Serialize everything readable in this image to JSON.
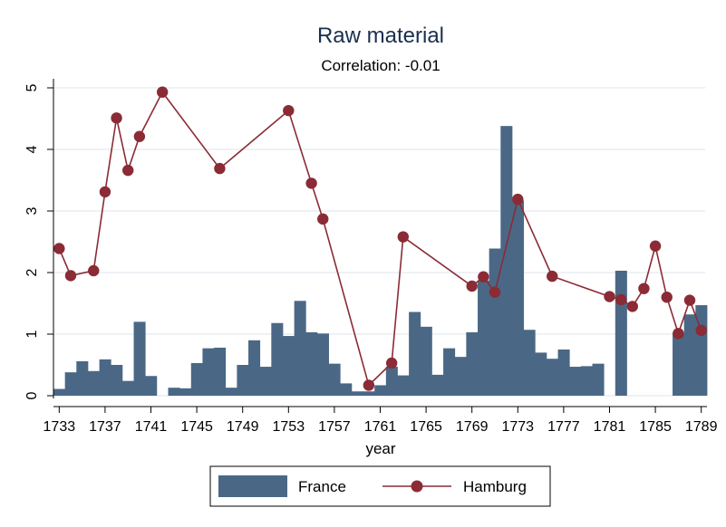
{
  "chart_data": {
    "type": "bar",
    "title": "Raw material",
    "subtitle": "Correlation: -0.01",
    "xlabel": "year",
    "ylabel": "",
    "xlim": [
      1732.5,
      1789.5
    ],
    "ylim": [
      0,
      5
    ],
    "x_ticks": [
      1733,
      1737,
      1741,
      1745,
      1749,
      1753,
      1757,
      1761,
      1765,
      1769,
      1773,
      1777,
      1781,
      1785,
      1789
    ],
    "y_ticks": [
      0,
      1,
      2,
      3,
      4,
      5
    ],
    "grid": true,
    "legend_position": "bottom",
    "colors": {
      "bar": "#4a6886",
      "line": "#8b2b35",
      "marker": "#8b2b35",
      "grid": "#e8eef2",
      "title": "#1a2f4f"
    },
    "series": [
      {
        "name": "France",
        "type": "bar",
        "x": [
          1733,
          1734,
          1735,
          1736,
          1737,
          1738,
          1739,
          1740,
          1741,
          1743,
          1744,
          1745,
          1746,
          1747,
          1748,
          1749,
          1750,
          1751,
          1752,
          1753,
          1754,
          1755,
          1756,
          1757,
          1758,
          1759,
          1760,
          1761,
          1762,
          1763,
          1764,
          1765,
          1766,
          1767,
          1768,
          1769,
          1770,
          1771,
          1772,
          1773,
          1774,
          1775,
          1776,
          1777,
          1778,
          1779,
          1780,
          1782,
          1787,
          1788,
          1789
        ],
        "values": [
          0.11,
          0.38,
          0.56,
          0.4,
          0.59,
          0.5,
          0.24,
          1.2,
          0.32,
          0.13,
          0.12,
          0.53,
          0.77,
          0.78,
          0.13,
          0.5,
          0.9,
          0.47,
          1.18,
          0.97,
          1.54,
          1.03,
          1.01,
          0.52,
          0.2,
          0.07,
          0.07,
          0.17,
          0.47,
          0.33,
          1.36,
          1.12,
          0.34,
          0.77,
          0.63,
          1.03,
          1.87,
          2.39,
          4.38,
          3.17,
          1.07,
          0.7,
          0.6,
          0.75,
          0.47,
          0.48,
          0.52,
          2.03,
          1.02,
          1.32,
          1.47
        ]
      },
      {
        "name": "Hamburg",
        "type": "line",
        "x": [
          1733,
          1734,
          1736,
          1737,
          1738,
          1739,
          1740,
          1742,
          1747,
          1753,
          1755,
          1756,
          1760,
          1762,
          1763,
          1769,
          1770,
          1771,
          1773,
          1776,
          1781,
          1782,
          1783,
          1784,
          1785,
          1786,
          1787,
          1788,
          1789
        ],
        "values": [
          2.39,
          1.95,
          2.03,
          3.31,
          4.51,
          3.66,
          4.21,
          4.93,
          3.69,
          4.63,
          3.45,
          2.87,
          0.17,
          0.53,
          2.58,
          1.78,
          1.93,
          1.68,
          3.19,
          1.94,
          1.61,
          1.56,
          1.45,
          1.74,
          2.43,
          1.6,
          1.01,
          1.55,
          1.06
        ]
      }
    ]
  }
}
